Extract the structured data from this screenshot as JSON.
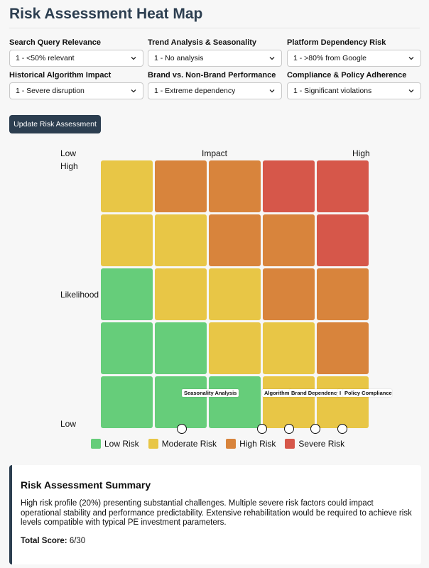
{
  "page": {
    "title": "Risk Assessment Heat Map"
  },
  "form": {
    "fields": [
      {
        "label": "Search Query Relevance",
        "value": "1 - <50% relevant"
      },
      {
        "label": "Trend Analysis & Seasonality",
        "value": "1 - No analysis"
      },
      {
        "label": "Platform Dependency Risk",
        "value": "1 - >80% from Google"
      },
      {
        "label": "Historical Algorithm Impact",
        "value": "1 - Severe disruption"
      },
      {
        "label": "Brand vs. Non-Brand Performance",
        "value": "1 - Extreme dependency"
      },
      {
        "label": "Compliance & Policy Adherence",
        "value": "1 - Significant violations"
      }
    ],
    "update_button": "Update Risk Assessment"
  },
  "heatmap": {
    "impact_label": "Impact",
    "impact_low": "Low",
    "impact_high": "High",
    "likelihood_label": "Likelihood",
    "likelihood_high": "High",
    "likelihood_low": "Low",
    "rows": [
      [
        "moderate",
        "high",
        "high",
        "severe",
        "severe"
      ],
      [
        "moderate",
        "moderate",
        "high",
        "high",
        "severe"
      ],
      [
        "low",
        "moderate",
        "moderate",
        "high",
        "high"
      ],
      [
        "low",
        "low",
        "moderate",
        "moderate",
        "high"
      ],
      [
        "low",
        "low",
        "low",
        "moderate",
        "moderate"
      ]
    ],
    "markers": [
      "Seasonality Analysis",
      "Algorithm",
      "Brand Dependency",
      "I",
      "Policy Compliance"
    ],
    "legend": [
      {
        "label": "Low Risk",
        "color": "#66cd7a"
      },
      {
        "label": "Moderate Risk",
        "color": "#e8c646"
      },
      {
        "label": "High Risk",
        "color": "#d8843c"
      },
      {
        "label": "Severe Risk",
        "color": "#d6574a"
      }
    ]
  },
  "summary": {
    "title": "Risk Assessment Summary",
    "text": "High risk profile (20%) presenting substantial challenges. Multiple severe risk factors could impact operational stability and performance predictability. Extensive rehabilitation would be required to achieve risk levels compatible with typical PE investment parameters.",
    "score_label": "Total Score:",
    "score_value": "6/30"
  }
}
